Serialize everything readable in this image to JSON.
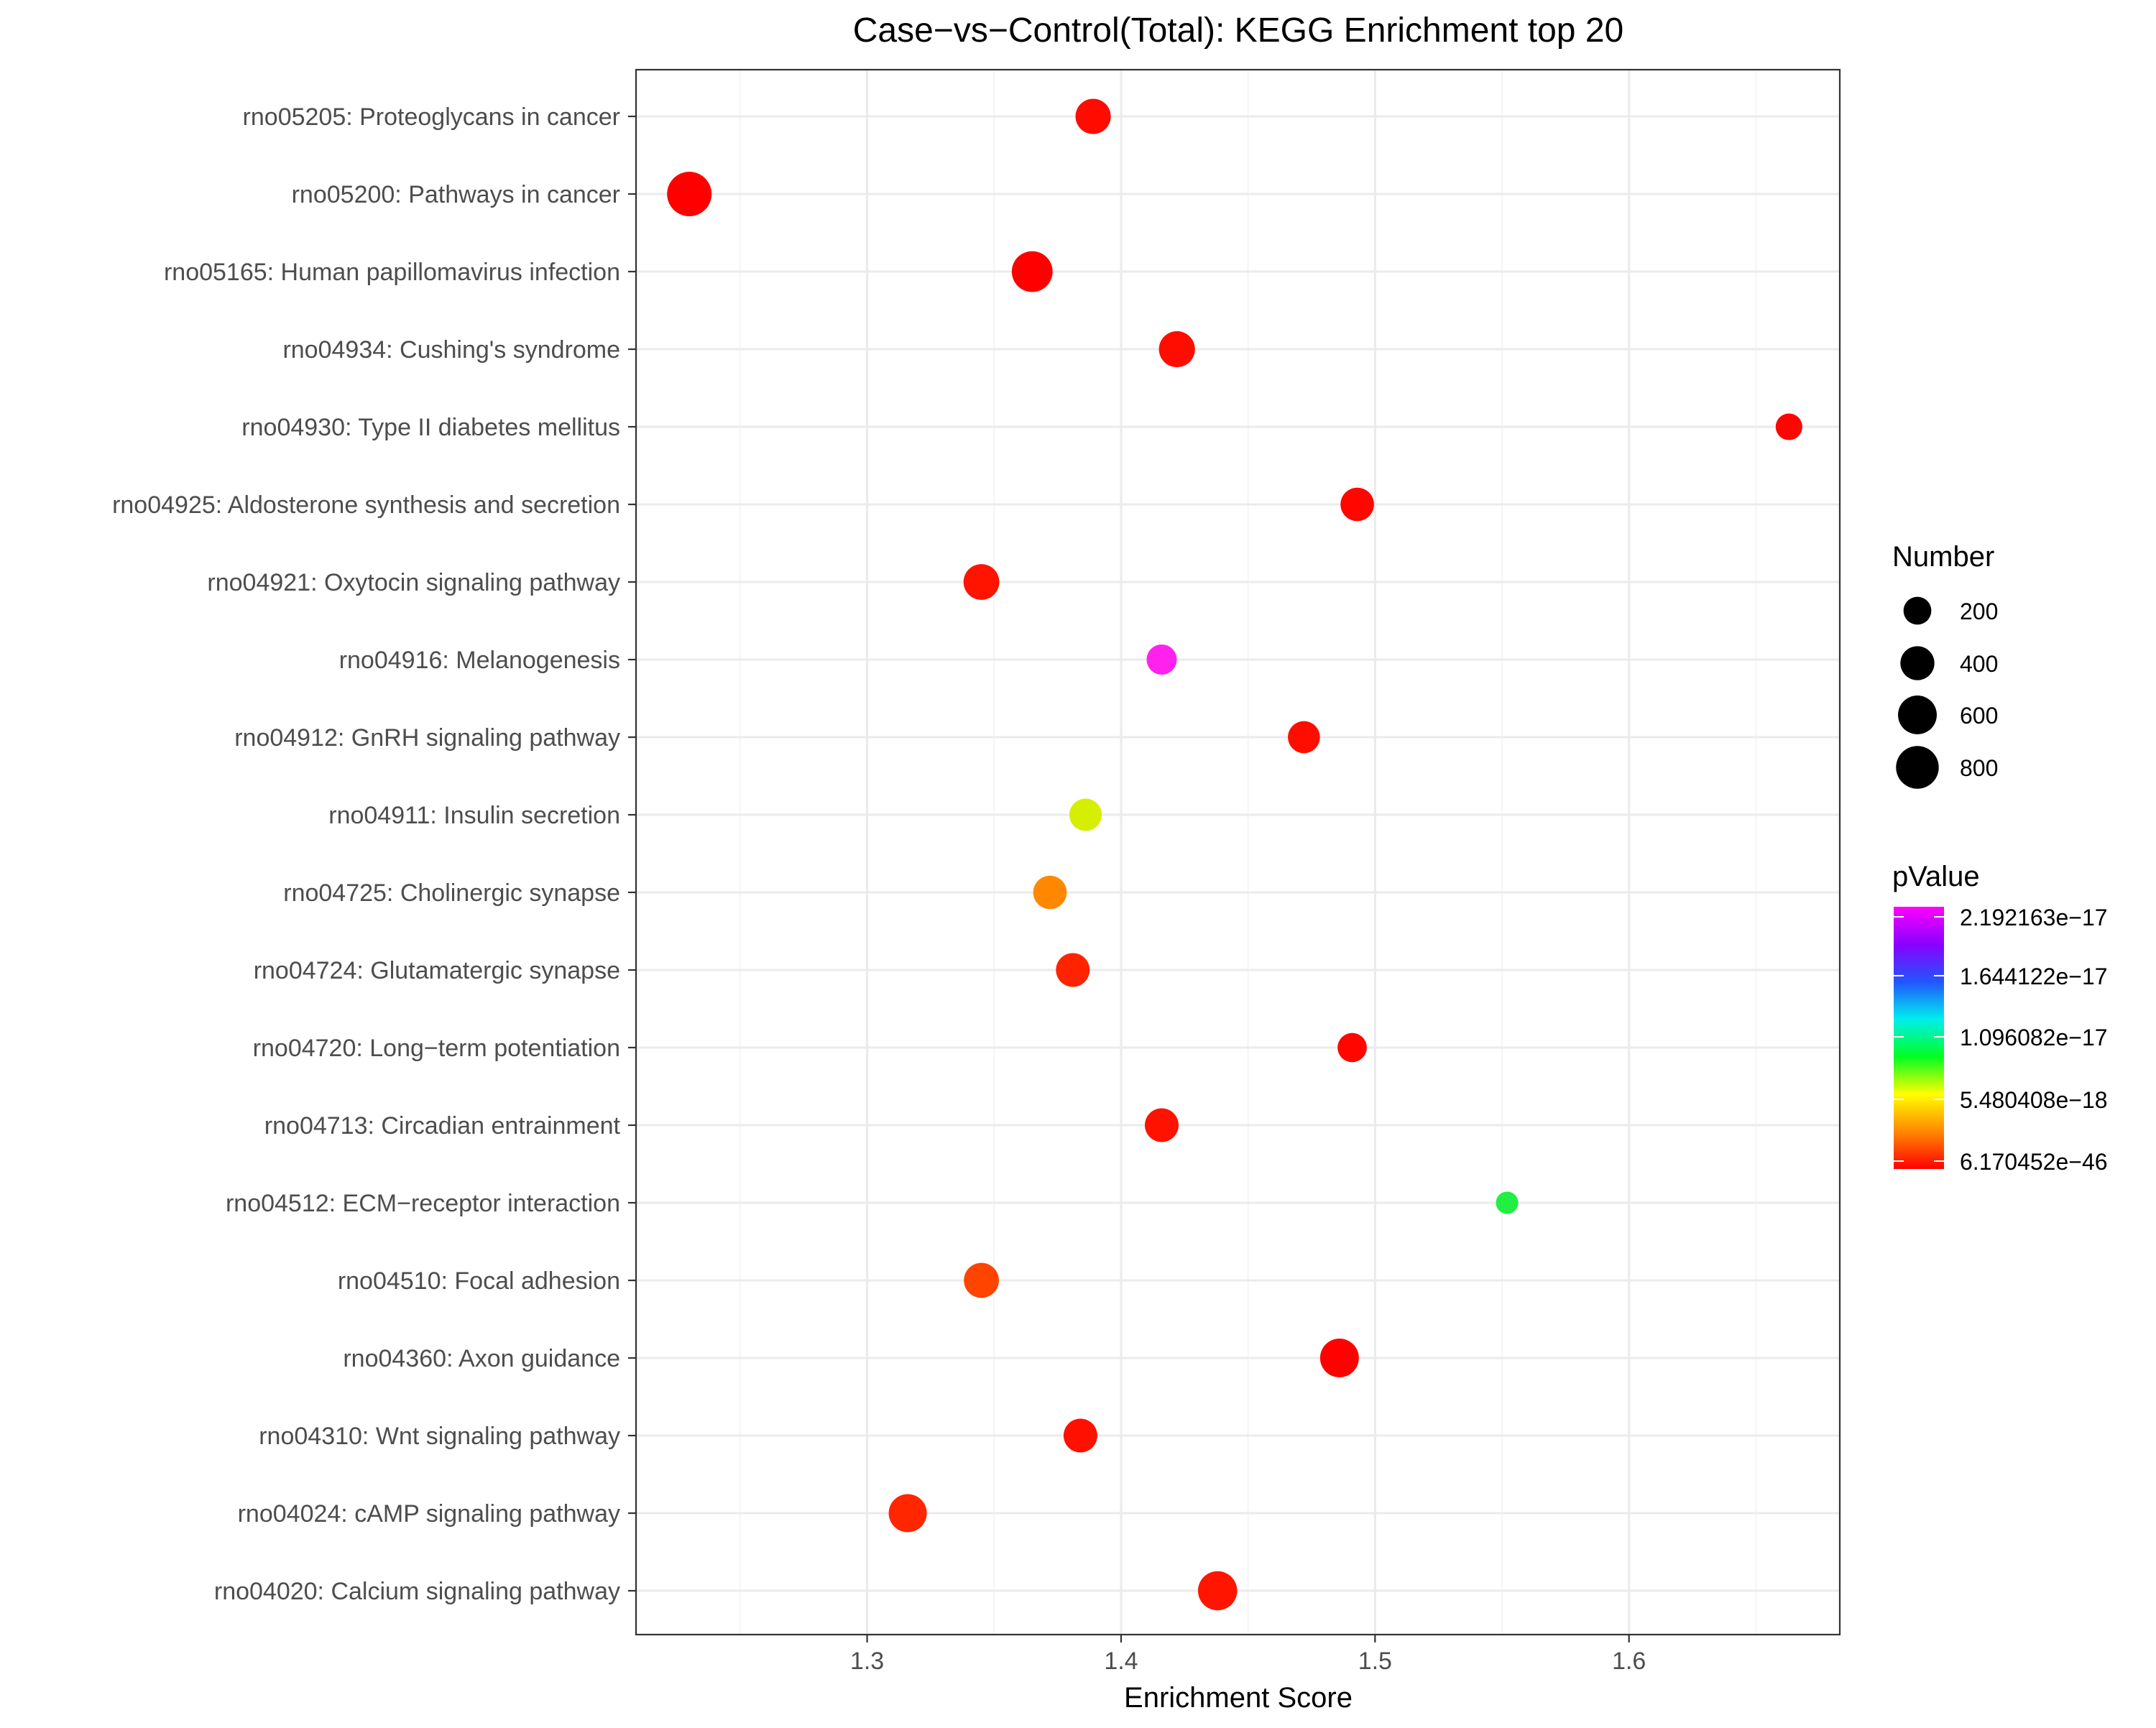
{
  "chart_data": {
    "type": "scatter",
    "title": "Case−vs−Control(Total): KEGG Enrichment top 20",
    "xlabel": "Enrichment Score",
    "ylabel": "",
    "xlim": [
      1.209,
      1.683
    ],
    "xticks": [
      1.3,
      1.4,
      1.5,
      1.6
    ],
    "xtick_labels": [
      "1.3",
      "1.4",
      "1.5",
      "1.6"
    ],
    "grid": true,
    "legend_position": "right",
    "categories": [
      "rno05205: Proteoglycans in cancer",
      "rno05200: Pathways in cancer",
      "rno05165: Human papillomavirus infection",
      "rno04934: Cushing's syndrome",
      "rno04930: Type II diabetes mellitus",
      "rno04925: Aldosterone synthesis and secretion",
      "rno04921: Oxytocin signaling pathway",
      "rno04916: Melanogenesis",
      "rno04912: GnRH signaling pathway",
      "rno04911: Insulin secretion",
      "rno04725: Cholinergic synapse",
      "rno04724: Glutamatergic synapse",
      "rno04720: Long−term potentiation",
      "rno04713: Circadian entrainment",
      "rno04512: ECM−receptor interaction",
      "rno04510: Focal adhesion",
      "rno04360: Axon guidance",
      "rno04310: Wnt signaling pathway",
      "rno04024: cAMP signaling pathway",
      "rno04020: Calcium signaling pathway"
    ],
    "points": [
      {
        "x": 1.389,
        "number": 450,
        "color": "#ff0b00"
      },
      {
        "x": 1.23,
        "number": 900,
        "color": "#ff0000"
      },
      {
        "x": 1.365,
        "number": 700,
        "color": "#ff0000"
      },
      {
        "x": 1.422,
        "number": 480,
        "color": "#ff0e00"
      },
      {
        "x": 1.663,
        "number": 170,
        "color": "#ff0500"
      },
      {
        "x": 1.493,
        "number": 380,
        "color": "#ff0600"
      },
      {
        "x": 1.345,
        "number": 470,
        "color": "#ff1400"
      },
      {
        "x": 1.416,
        "number": 270,
        "color": "#ff22ee"
      },
      {
        "x": 1.472,
        "number": 330,
        "color": "#ff0e00"
      },
      {
        "x": 1.386,
        "number": 340,
        "color": "#d6ee00"
      },
      {
        "x": 1.372,
        "number": 380,
        "color": "#ff8800"
      },
      {
        "x": 1.381,
        "number": 390,
        "color": "#ff2300"
      },
      {
        "x": 1.491,
        "number": 240,
        "color": "#ff0600"
      },
      {
        "x": 1.416,
        "number": 390,
        "color": "#ff1200"
      },
      {
        "x": 1.552,
        "number": 80,
        "color": "#22ee44"
      },
      {
        "x": 1.345,
        "number": 440,
        "color": "#ff4400"
      },
      {
        "x": 1.486,
        "number": 600,
        "color": "#ff0200"
      },
      {
        "x": 1.384,
        "number": 390,
        "color": "#ff1000"
      },
      {
        "x": 1.316,
        "number": 570,
        "color": "#ff2600"
      },
      {
        "x": 1.438,
        "number": 620,
        "color": "#ff1500"
      }
    ],
    "size_legend": {
      "title": "Number",
      "values": [
        200,
        400,
        600,
        800
      ],
      "labels": [
        "200",
        "400",
        "600",
        "800"
      ]
    },
    "color_legend": {
      "title": "pValue",
      "labels": [
        "2.192163e−17",
        "1.644122e−17",
        "1.096082e−17",
        "5.480408e−18",
        "6.170452e−46"
      ],
      "gradient_colors": [
        "#ff00ff",
        "#8800ff",
        "#2255ff",
        "#00eeee",
        "#00ff22",
        "#ffff00",
        "#ff8800",
        "#ff0000"
      ]
    }
  }
}
